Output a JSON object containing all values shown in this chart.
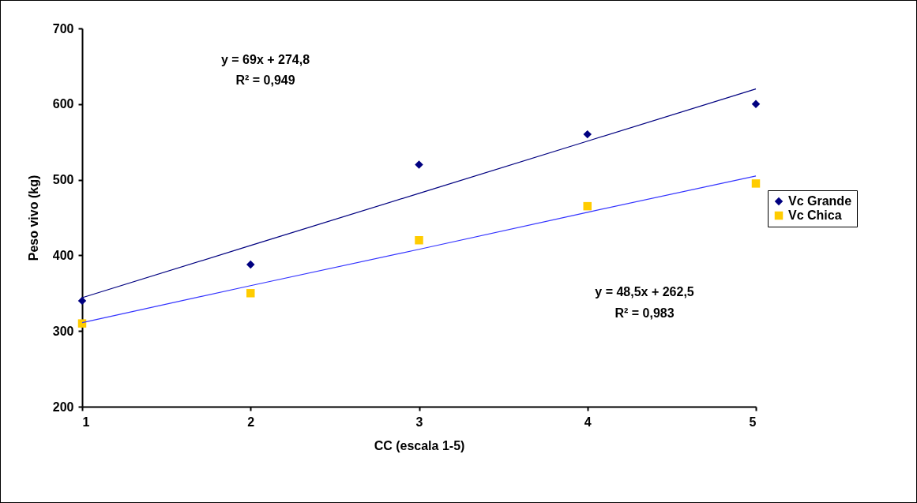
{
  "chart_data": {
    "type": "scatter",
    "xlabel": "CC (escala 1-5)",
    "ylabel": "Peso vivo (kg)",
    "x": [
      1,
      2,
      3,
      4,
      5
    ],
    "series": [
      {
        "name": "Vc Grande",
        "color": "#000080",
        "marker": "diamond",
        "values": [
          340,
          388,
          520,
          560,
          600
        ]
      },
      {
        "name": "Vc Chica",
        "color": "#ffcc00",
        "marker": "square",
        "values": [
          310,
          350,
          420,
          465,
          495
        ]
      },
      {
        "type": "line",
        "color": "#000080",
        "values": [
          344,
          413,
          482,
          551,
          620
        ]
      },
      {
        "type": "line",
        "color": "#3333ff",
        "values": [
          311,
          360,
          408,
          457,
          505
        ]
      }
    ],
    "annotations": [
      "y = 69x + 274,8",
      "R² = 0,949",
      "y = 48,5x + 262,5",
      "R² = 0,983"
    ],
    "xlim": [
      1,
      5
    ],
    "xticks": [
      {
        "value": 1,
        "label": "1"
      },
      {
        "value": 2,
        "label": "2"
      },
      {
        "value": 3,
        "label": "3"
      },
      {
        "value": 4,
        "label": "4"
      },
      {
        "value": 5,
        "label": "5"
      }
    ],
    "ylim": [
      200,
      700
    ],
    "yticks": [
      200,
      300,
      400,
      500,
      600,
      700
    ],
    "grid": false,
    "legend": "right"
  }
}
